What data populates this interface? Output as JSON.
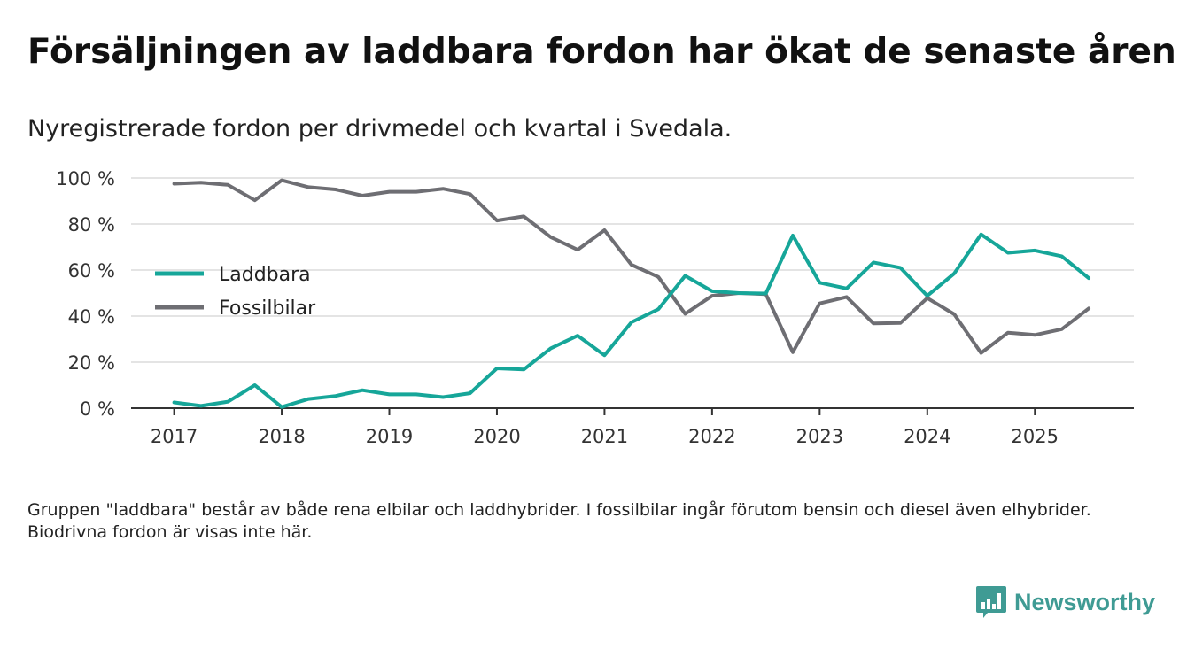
{
  "title": "Försäljningen av laddbara fordon har ökat de senaste åren",
  "subtitle": "Nyregistrerade fordon per drivmedel och kvartal i Svedala.",
  "footnote": "Gruppen \"laddbara\" består av både rena elbilar och laddhybrider. I fossilbilar ingår förutom bensin och diesel även elhybrider. Biodrivna fordon är visas inte här.",
  "brand": {
    "name": "Newsworthy",
    "icon": "bar-chart-speech-bubble-icon",
    "color": "#3f9b94"
  },
  "chart_data": {
    "type": "line",
    "title": "Nyregistrerade fordon per drivmedel och kvartal i Svedala.",
    "xlabel": "",
    "ylabel": "",
    "xlim": [
      2016.6,
      2025.92
    ],
    "ylim": [
      0,
      100
    ],
    "yticks": [
      0,
      20,
      40,
      60,
      80,
      100
    ],
    "ytick_labels": [
      "0 %",
      "20 %",
      "40 %",
      "60 %",
      "80 %",
      "100 %"
    ],
    "xticks": [
      2017,
      2018,
      2019,
      2020,
      2021,
      2022,
      2023,
      2024,
      2025
    ],
    "xtick_labels": [
      "2017",
      "2018",
      "2019",
      "2020",
      "2021",
      "2022",
      "2023",
      "2024",
      "2025"
    ],
    "grid": true,
    "legend_position": "left-middle",
    "x": [
      2017.0,
      2017.25,
      2017.5,
      2017.75,
      2018.0,
      2018.25,
      2018.5,
      2018.75,
      2019.0,
      2019.25,
      2019.5,
      2019.75,
      2020.0,
      2020.25,
      2020.5,
      2020.75,
      2021.0,
      2021.25,
      2021.5,
      2021.75,
      2022.0,
      2022.25,
      2022.5,
      2022.75,
      2023.0,
      2023.25,
      2023.5,
      2023.75,
      2024.0,
      2024.25,
      2024.5,
      2024.75,
      2025.0,
      2025.25,
      2025.5
    ],
    "series": [
      {
        "name": "Laddbara",
        "color": "#16a699",
        "values": [
          2.5,
          1.0,
          2.8,
          10.0,
          0.5,
          4.0,
          5.3,
          7.8,
          6.0,
          6.0,
          4.8,
          6.5,
          17.3,
          16.8,
          26.0,
          31.5,
          23.0,
          37.3,
          43.0,
          57.5,
          50.8,
          50.0,
          49.8,
          75.0,
          54.5,
          52.0,
          63.3,
          61.0,
          48.8,
          58.5,
          75.5,
          67.5,
          68.5,
          66.0,
          56.5
        ]
      },
      {
        "name": "Fossilbilar",
        "color": "#6e6e73",
        "values": [
          97.5,
          98.0,
          97.0,
          90.3,
          99.0,
          96.0,
          95.0,
          92.3,
          94.0,
          94.0,
          95.3,
          93.0,
          81.5,
          83.3,
          74.3,
          68.8,
          77.3,
          62.3,
          57.0,
          41.0,
          48.8,
          50.0,
          49.5,
          24.3,
          45.5,
          48.3,
          36.8,
          37.0,
          47.8,
          40.8,
          24.0,
          32.8,
          31.8,
          34.3,
          43.3
        ]
      }
    ]
  }
}
